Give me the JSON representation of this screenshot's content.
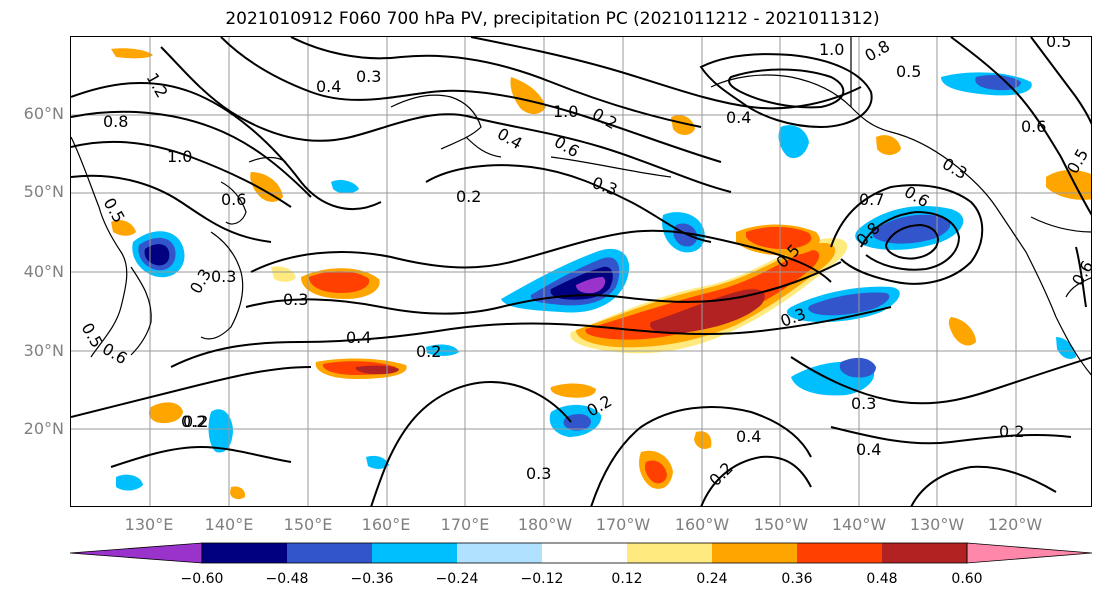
{
  "title": "2021010912 F060 700 hPa PV, precipitation PC (2021011212 - 2021011312)",
  "map": {
    "lat_labels": [
      "60°N",
      "50°N",
      "40°N",
      "30°N",
      "20°N"
    ],
    "lon_labels": [
      "130°E",
      "140°E",
      "150°E",
      "160°E",
      "170°E",
      "180°W",
      "170°W",
      "160°W",
      "150°W",
      "140°W",
      "130°W",
      "120°W"
    ],
    "contour_labels": [
      "1.2",
      "0.8",
      "1.0",
      "0.5",
      "0.6",
      "0.3",
      "0.2",
      "0.4",
      "0.3",
      "0.2",
      "1.0",
      "0.6",
      "0.4",
      "0.3",
      "0.2",
      "0.4",
      "0.3",
      "0.2",
      "0.3",
      "0.4",
      "0.3",
      "0.5",
      "0.7",
      "0.6",
      "0.8",
      "0.5",
      "0.3",
      "0.4",
      "0.2",
      "0.3",
      "0.2",
      "0.4",
      "0.2",
      "1.0",
      "0.8",
      "0.5",
      "0.6",
      "0.6",
      "0.3",
      "0.5",
      "0.5",
      "0.6",
      "0.2"
    ],
    "contour_color": "#000000",
    "grid_color": "#999999"
  },
  "colorbar": {
    "colors": [
      "#9933cc",
      "#000080",
      "#3355cc",
      "#00bfff",
      "#b0e2ff",
      "#ffffff",
      "#ffea80",
      "#ffa500",
      "#ff4000",
      "#b22222",
      "#ff88aa"
    ],
    "tick_labels": [
      "−0.60",
      "−0.48",
      "−0.36",
      "−0.24",
      "−0.12",
      "0.12",
      "0.24",
      "0.36",
      "0.48",
      "0.60"
    ]
  }
}
